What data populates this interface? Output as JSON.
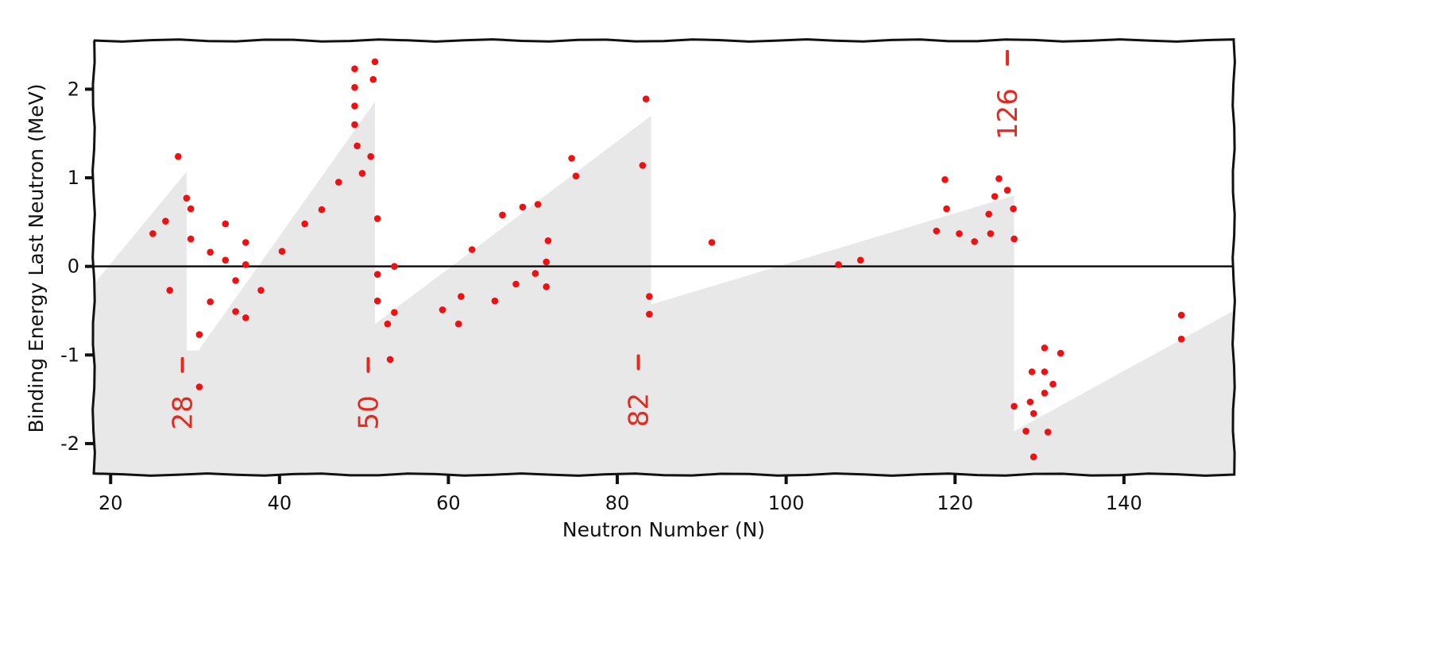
{
  "chart_data": {
    "type": "scatter",
    "title": "",
    "xlabel": "Neutron Number (N)",
    "ylabel": "Binding Energy Last Neutron (MeV)",
    "xlim": [
      18,
      153
    ],
    "ylim": [
      -2.35,
      2.55
    ],
    "x_ticks": [
      20,
      40,
      60,
      80,
      100,
      120,
      140
    ],
    "y_ticks": [
      -2,
      -1,
      0,
      1,
      2
    ],
    "grid": false,
    "colors": {
      "points": "#ee1111",
      "magic": "#e8281c",
      "band": "#e8e8e8",
      "axis": "#111111"
    },
    "shaded_band": [
      [
        18,
        -0.2
      ],
      [
        29,
        1.07
      ],
      [
        29,
        -0.95
      ],
      [
        30.4,
        -0.95
      ],
      [
        51.3,
        1.86
      ],
      [
        51.3,
        -0.65
      ],
      [
        84,
        1.7
      ],
      [
        84,
        -0.43
      ],
      [
        127,
        0.8
      ],
      [
        127,
        -1.86
      ],
      [
        153,
        -0.5
      ]
    ],
    "points": [
      [
        25,
        0.37
      ],
      [
        26.5,
        0.51
      ],
      [
        27,
        -0.27
      ],
      [
        28,
        1.24
      ],
      [
        29,
        0.77
      ],
      [
        29.5,
        0.65
      ],
      [
        29.5,
        0.31
      ],
      [
        30.5,
        -0.77
      ],
      [
        30.5,
        -1.36
      ],
      [
        31.8,
        0.16
      ],
      [
        31.8,
        -0.4
      ],
      [
        33.6,
        0.48
      ],
      [
        33.6,
        0.07
      ],
      [
        34.8,
        -0.16
      ],
      [
        34.8,
        -0.51
      ],
      [
        36,
        0.27
      ],
      [
        36,
        0.02
      ],
      [
        36,
        -0.58
      ],
      [
        37.8,
        -0.27
      ],
      [
        40.3,
        0.17
      ],
      [
        43,
        0.48
      ],
      [
        45,
        0.64
      ],
      [
        47,
        0.95
      ],
      [
        48.9,
        2.23
      ],
      [
        48.9,
        2.02
      ],
      [
        48.9,
        1.81
      ],
      [
        48.9,
        1.6
      ],
      [
        49.2,
        1.36
      ],
      [
        49.8,
        1.05
      ],
      [
        50.8,
        1.24
      ],
      [
        51.1,
        2.11
      ],
      [
        51.3,
        2.31
      ],
      [
        51.6,
        0.54
      ],
      [
        51.6,
        -0.09
      ],
      [
        51.6,
        -0.39
      ],
      [
        52.8,
        -0.65
      ],
      [
        53.1,
        -1.05
      ],
      [
        53.6,
        -0.52
      ],
      [
        53.6,
        0.0
      ],
      [
        59.3,
        -0.49
      ],
      [
        61.2,
        -0.65
      ],
      [
        61.5,
        -0.34
      ],
      [
        62.8,
        0.19
      ],
      [
        65.5,
        -0.39
      ],
      [
        66.4,
        0.58
      ],
      [
        68,
        -0.2
      ],
      [
        68.8,
        0.67
      ],
      [
        70.3,
        -0.08
      ],
      [
        70.6,
        0.7
      ],
      [
        71.6,
        0.05
      ],
      [
        71.6,
        -0.23
      ],
      [
        71.8,
        0.29
      ],
      [
        74.6,
        1.22
      ],
      [
        75.1,
        1.02
      ],
      [
        83,
        1.14
      ],
      [
        83.4,
        1.89
      ],
      [
        83.8,
        -0.34
      ],
      [
        83.8,
        -0.54
      ],
      [
        91.2,
        0.27
      ],
      [
        106.2,
        0.02
      ],
      [
        108.8,
        0.07
      ],
      [
        117.8,
        0.4
      ],
      [
        118.8,
        0.98
      ],
      [
        119,
        0.65
      ],
      [
        120.5,
        0.37
      ],
      [
        122.3,
        0.28
      ],
      [
        124,
        0.59
      ],
      [
        124.2,
        0.37
      ],
      [
        124.7,
        0.79
      ],
      [
        125.2,
        0.99
      ],
      [
        126.2,
        0.86
      ],
      [
        126.9,
        0.65
      ],
      [
        127,
        0.31
      ],
      [
        127,
        -1.58
      ],
      [
        128.4,
        -1.86
      ],
      [
        128.9,
        -1.53
      ],
      [
        129.1,
        -1.19
      ],
      [
        129.3,
        -1.66
      ],
      [
        129.3,
        -2.15
      ],
      [
        130.6,
        -0.92
      ],
      [
        130.6,
        -1.19
      ],
      [
        130.6,
        -1.43
      ],
      [
        131,
        -1.87
      ],
      [
        131.6,
        -1.33
      ],
      [
        132.5,
        -0.98
      ],
      [
        146.8,
        -0.55
      ],
      [
        146.8,
        -0.82
      ]
    ],
    "magic_numbers": [
      {
        "label": "28",
        "x": 28.5,
        "y": -1.65
      },
      {
        "label": "50",
        "x": 50.5,
        "y": -1.65
      },
      {
        "label": "82",
        "x": 82.5,
        "y": -1.62
      },
      {
        "label": "126",
        "x": 126.2,
        "y": 1.72
      }
    ]
  }
}
